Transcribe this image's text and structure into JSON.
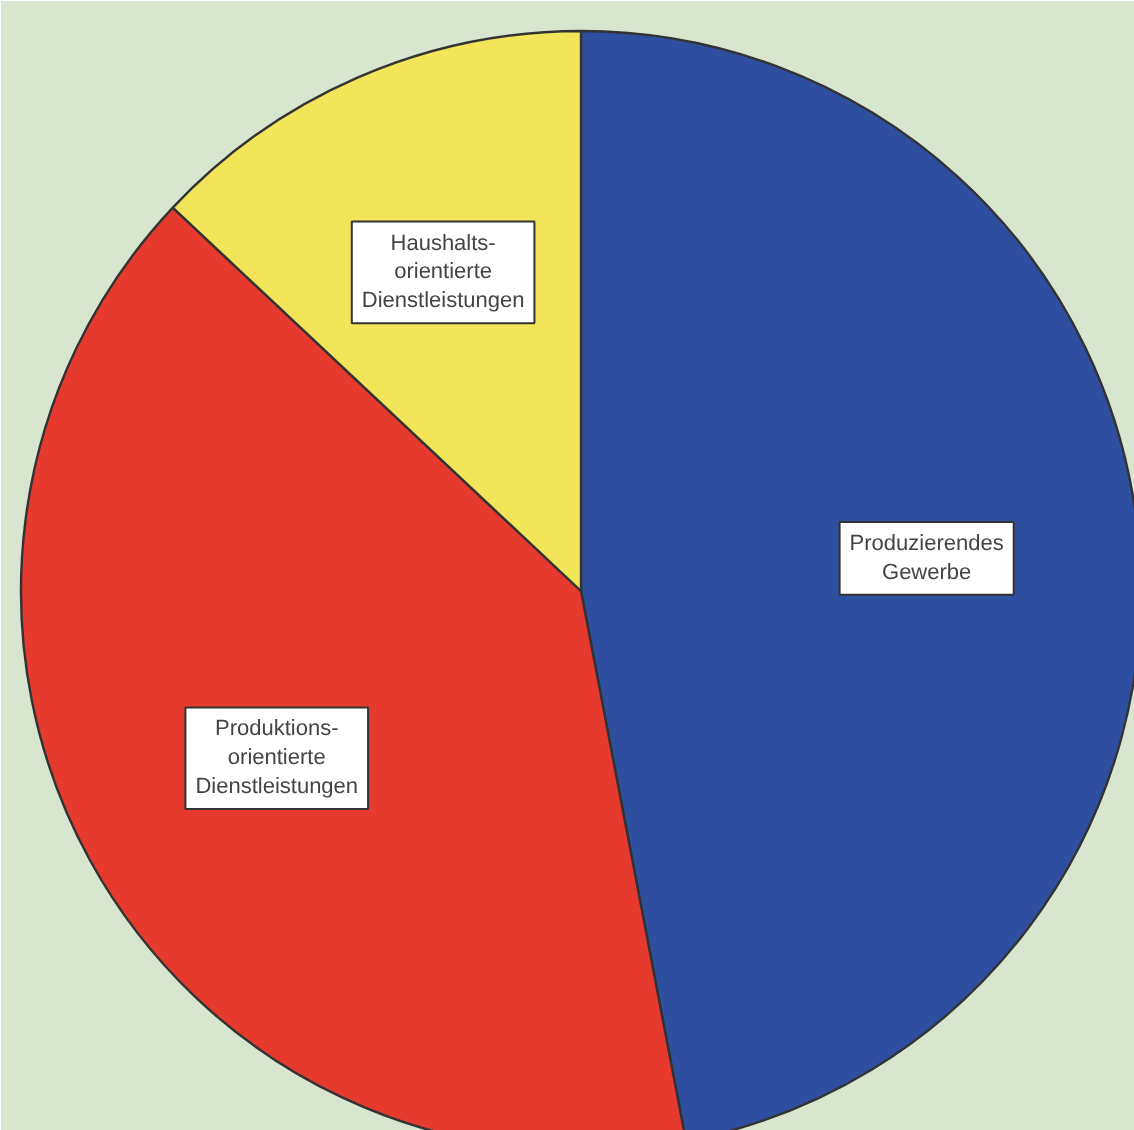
{
  "chart_data": {
    "type": "pie",
    "categories": [
      "Produzierendes\nGewerbe",
      "Produktions-\norientierte\nDienstleistungen",
      "Haushalts-\norientierte\nDienstleistungen"
    ],
    "values": [
      47,
      40,
      13
    ],
    "colors": [
      "#2e4fa0",
      "#e63a2e",
      "#f2e55a"
    ]
  }
}
